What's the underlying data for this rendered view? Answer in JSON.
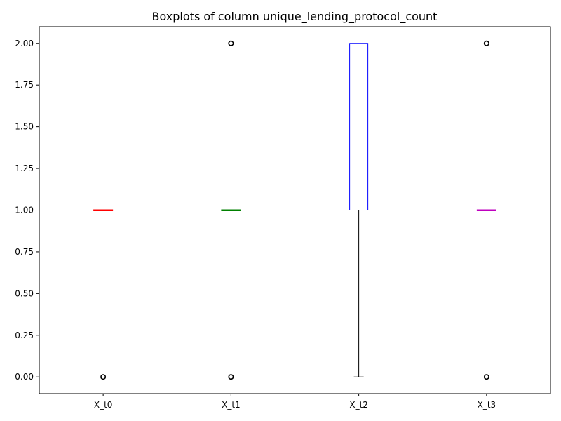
{
  "chart_data": {
    "type": "box",
    "title": "Boxplots of column unique_lending_protocol_count",
    "xlabel": "",
    "ylabel": "",
    "ylim": [
      -0.1,
      2.1
    ],
    "yticks": [
      0.0,
      0.25,
      0.5,
      0.75,
      1.0,
      1.25,
      1.5,
      1.75,
      2.0
    ],
    "ytick_labels": [
      "0.00",
      "0.25",
      "0.50",
      "0.75",
      "1.00",
      "1.25",
      "1.50",
      "1.75",
      "2.00"
    ],
    "grid": false,
    "categories": [
      "X_t0",
      "X_t1",
      "X_t2",
      "X_t3"
    ],
    "boxes": [
      {
        "label": "X_t0",
        "q1": 1.0,
        "median": 1.0,
        "q3": 1.0,
        "whisker_low": 1.0,
        "whisker_high": 1.0,
        "outliers": [
          0.0
        ],
        "box_color": "#ff0000",
        "median_color": "#ff7f0e"
      },
      {
        "label": "X_t1",
        "q1": 1.0,
        "median": 1.0,
        "q3": 1.0,
        "whisker_low": 1.0,
        "whisker_high": 1.0,
        "outliers": [
          0.0,
          2.0
        ],
        "box_color": "#008000",
        "median_color": "#ff7f0e"
      },
      {
        "label": "X_t2",
        "q1": 1.0,
        "median": 1.0,
        "q3": 2.0,
        "whisker_low": 0.0,
        "whisker_high": 2.0,
        "outliers": [],
        "box_color": "#0000ff",
        "median_color": "#ff7f0e"
      },
      {
        "label": "X_t3",
        "q1": 1.0,
        "median": 1.0,
        "q3": 1.0,
        "whisker_low": 1.0,
        "whisker_high": 1.0,
        "outliers": [
          0.0,
          2.0
        ],
        "box_color": "#bf00bf",
        "median_color": "#ff7f0e"
      }
    ]
  }
}
